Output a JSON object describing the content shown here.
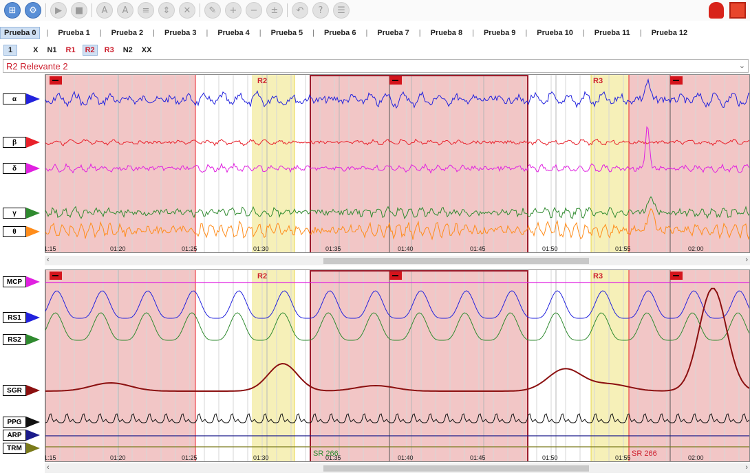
{
  "toolbar": {
    "buttons": [
      "tree-icon",
      "gear-icon",
      "play-icon",
      "stop-icon",
      "a-outline-icon",
      "a-filled-icon",
      "list-icon",
      "expand-icon",
      "clear-icon",
      "eraser-icon",
      "plus-icon",
      "minus-icon",
      "plusminus-icon",
      "undo-icon",
      "help-icon",
      "notes-icon"
    ],
    "right_icons": [
      "head-icon",
      "layout-icon"
    ]
  },
  "tabs": [
    "Prueba 0",
    "Prueba 1",
    "Prueba 2",
    "Prueba 3",
    "Prueba 4",
    "Prueba 5",
    "Prueba 6",
    "Prueba 7",
    "Prueba 8",
    "Prueba 9",
    "Prueba 10",
    "Prueba 11",
    "Prueba 12"
  ],
  "active_tab": "Prueba 0",
  "events": {
    "number": "1",
    "items": [
      {
        "label": "X",
        "style": "blk"
      },
      {
        "label": "N1",
        "style": "blk"
      },
      {
        "label": "R1",
        "style": "red"
      },
      {
        "label": "R2",
        "style": "sel"
      },
      {
        "label": "R3",
        "style": "red"
      },
      {
        "label": "N2",
        "style": "blk"
      },
      {
        "label": "XX",
        "style": "blk"
      }
    ]
  },
  "dropdown": {
    "value": "R2 Relevante 2"
  },
  "top_panel": {
    "channels": [
      {
        "label": "α",
        "color": "#2222dd"
      },
      {
        "label": "β",
        "color": "#e8202a"
      },
      {
        "label": "δ",
        "color": "#e020e0"
      },
      {
        "label": "γ",
        "color": "#2f8a2f"
      },
      {
        "label": "θ",
        "color": "#ff8c1a"
      }
    ],
    "time_labels": [
      "1:15",
      "01:20",
      "01:25",
      "01:30",
      "01:35",
      "01:40",
      "01:45",
      "01:50",
      "01:55",
      "02:00"
    ],
    "region_labels": [
      "R2",
      "R3"
    ]
  },
  "bottom_panel": {
    "channels": [
      {
        "label": "MCP",
        "color": "#e020e0"
      },
      {
        "label": "RS1",
        "color": "#2222dd"
      },
      {
        "label": "RS2",
        "color": "#2f8a2f"
      },
      {
        "label": "SGR",
        "color": "#8b1010"
      },
      {
        "label": "PPG",
        "color": "#111111"
      },
      {
        "label": "ARP",
        "color": "#1a1a8a"
      },
      {
        "label": "TRM",
        "color": "#7a7a1a"
      }
    ],
    "time_labels": [
      "1:15",
      "01:20",
      "01:25",
      "01:30",
      "01:35",
      "01:40",
      "01:45",
      "01:50",
      "01:55",
      "02:00"
    ],
    "region_labels": [
      "R2",
      "R3"
    ],
    "annotations": [
      "SR 266",
      "SR 266"
    ]
  },
  "colors": {
    "region_pink": "#f2c6c6",
    "region_yellow": "#f6f0b8",
    "box_border": "#9b1b2b",
    "red_line": "#e8202a",
    "flag": "#d4141c"
  }
}
